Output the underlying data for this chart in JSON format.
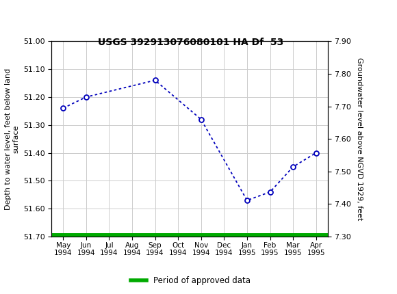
{
  "title": "USGS 392913076080101 HA Df  53",
  "x_labels": [
    "May\n1994",
    "Jun\n1994",
    "Jul\n1994",
    "Aug\n1994",
    "Sep\n1994",
    "Oct\n1994",
    "Nov\n1994",
    "Dec\n1994",
    "Jan\n1995",
    "Feb\n1995",
    "Mar\n1995",
    "Apr\n1995"
  ],
  "x_positions": [
    0,
    1,
    2,
    3,
    4,
    5,
    6,
    7,
    8,
    9,
    10,
    11
  ],
  "data_x": [
    0,
    1,
    4,
    6,
    8,
    9,
    10,
    11
  ],
  "data_y": [
    51.24,
    51.2,
    51.14,
    51.28,
    51.57,
    51.54,
    51.45,
    51.4
  ],
  "ylim_left": [
    51.7,
    51.0
  ],
  "ylim_right": [
    7.3,
    7.9
  ],
  "yticks_left": [
    51.0,
    51.1,
    51.2,
    51.3,
    51.4,
    51.5,
    51.6,
    51.7
  ],
  "yticks_right": [
    7.3,
    7.4,
    7.5,
    7.6,
    7.7,
    7.8,
    7.9
  ],
  "ylabel_left": "Depth to water level, feet below land\nsurface",
  "ylabel_right": "Groundwater level above NGVD 1929, feet",
  "line_color": "#0000bb",
  "marker_color": "#0000bb",
  "header_color": "#1a6b3c",
  "legend_label": "Period of approved data",
  "legend_color": "#00aa00",
  "fig_width": 5.8,
  "fig_height": 4.3,
  "dpi": 100
}
